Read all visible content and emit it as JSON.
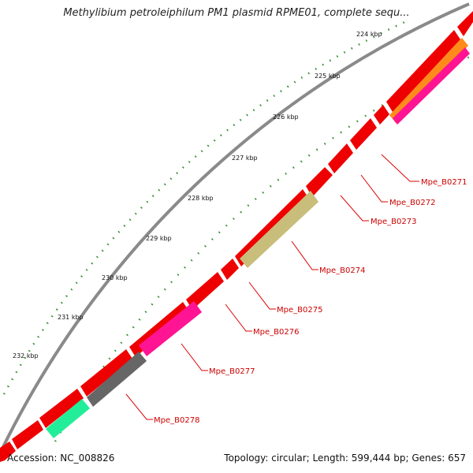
{
  "title": "Methylibium petroleiphilum PM1 plasmid RPME01, complete sequ...",
  "footer": {
    "accession": "Accession: NC_008826",
    "summary": "Topology: circular; Length: 599,444 bp; Genes: 657"
  },
  "kbp_ticks": [
    "224 kbp",
    "225 kbp",
    "226 kbp",
    "227 kbp",
    "228 kbp",
    "229 kbp",
    "230 kbp",
    "231 kbp",
    "232 kbp"
  ],
  "genes": [
    {
      "label": "Mpe_B0271",
      "color": "#ff8c1a"
    },
    {
      "label": "Mpe_B0272",
      "color": "#ff1493"
    },
    {
      "label": "Mpe_B0273",
      "color": "#ff1493"
    },
    {
      "label": "Mpe_B0274",
      "color": "#c8bd7a"
    },
    {
      "label": "Mpe_B0275",
      "color": "#ff1493"
    },
    {
      "label": "Mpe_B0276",
      "color": "#ff1493"
    },
    {
      "label": "Mpe_B0277",
      "color": "#ff1493"
    },
    {
      "label": "Mpe_B0278",
      "color": "#666666"
    }
  ],
  "colors": {
    "backbone": "#8a8a8a",
    "cds_forward": "#ee0000",
    "tick_dots": "#2e8b2e",
    "leader": "#dd0000",
    "accent_green": "#22ee99"
  }
}
